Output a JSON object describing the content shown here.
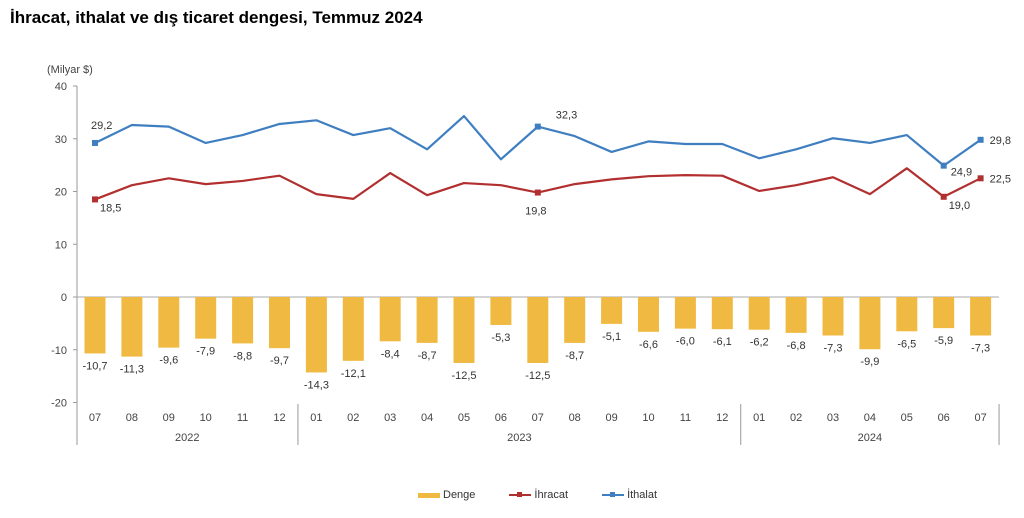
{
  "chart_data": {
    "type": "bar",
    "title": "İhracat, ithalat ve dış ticaret dengesi, Temmuz 2024",
    "ylabel": "(Milyar $)",
    "ylim": [
      -20,
      40
    ],
    "yticks": [
      40,
      30,
      20,
      10,
      0,
      -10,
      -20
    ],
    "grid": false,
    "legend_position": "bottom",
    "categories": [
      "07",
      "08",
      "09",
      "10",
      "11",
      "12",
      "01",
      "02",
      "03",
      "04",
      "05",
      "06",
      "07",
      "08",
      "09",
      "10",
      "11",
      "12",
      "01",
      "02",
      "03",
      "04",
      "05",
      "06",
      "07"
    ],
    "year_groups": [
      {
        "label": "2022",
        "count": 6
      },
      {
        "label": "2023",
        "count": 12
      },
      {
        "label": "2024",
        "count": 7
      }
    ],
    "series": [
      {
        "name": "Denge",
        "type": "bar",
        "color": "#f0b941",
        "values": [
          -10.7,
          -11.3,
          -9.6,
          -7.9,
          -8.8,
          -9.7,
          -14.3,
          -12.1,
          -8.4,
          -8.7,
          -12.5,
          -5.3,
          -12.5,
          -8.7,
          -5.1,
          -6.6,
          -6.0,
          -6.1,
          -6.2,
          -6.8,
          -7.3,
          -9.9,
          -6.5,
          -5.9,
          -7.3
        ],
        "labels": [
          "-10,7",
          "-11,3",
          "-9,6",
          "-7,9",
          "-8,8",
          "-9,7",
          "-14,3",
          "-12,1",
          "-8,4",
          "-8,7",
          "-12,5",
          "-5,3",
          "-12,5",
          "-8,7",
          "-5,1",
          "-6,6",
          "-6,0",
          "-6,1",
          "-6,2",
          "-6,8",
          "-7,3",
          "-9,9",
          "-6,5",
          "-5,9",
          "-7,3"
        ]
      },
      {
        "name": "İhracat",
        "type": "line",
        "color": "#b22f2f",
        "values": [
          18.5,
          21.2,
          22.5,
          21.4,
          22.0,
          23.0,
          19.5,
          18.6,
          23.5,
          19.3,
          21.6,
          21.2,
          19.8,
          21.4,
          22.3,
          22.9,
          23.1,
          23.0,
          20.1,
          21.2,
          22.7,
          19.5,
          24.4,
          19.0,
          22.5
        ],
        "labeled_points": [
          {
            "index": 0,
            "label": "18,5"
          },
          {
            "index": 12,
            "label": "19,8"
          },
          {
            "index": 23,
            "label": "19,0"
          },
          {
            "index": 24,
            "label": "22,5"
          }
        ]
      },
      {
        "name": "İthalat",
        "type": "line",
        "color": "#3f7fc1",
        "values": [
          29.2,
          32.6,
          32.3,
          29.2,
          30.7,
          32.8,
          33.5,
          30.7,
          32.0,
          28.0,
          34.3,
          26.1,
          32.3,
          30.5,
          27.5,
          29.5,
          29.0,
          29.0,
          26.3,
          28.0,
          30.1,
          29.2,
          30.7,
          24.9,
          29.8
        ],
        "labeled_points": [
          {
            "index": 0,
            "label": "29,2"
          },
          {
            "index": 12,
            "label": "32,3"
          },
          {
            "index": 23,
            "label": "24,9"
          },
          {
            "index": 24,
            "label": "29,8"
          }
        ]
      }
    ]
  }
}
